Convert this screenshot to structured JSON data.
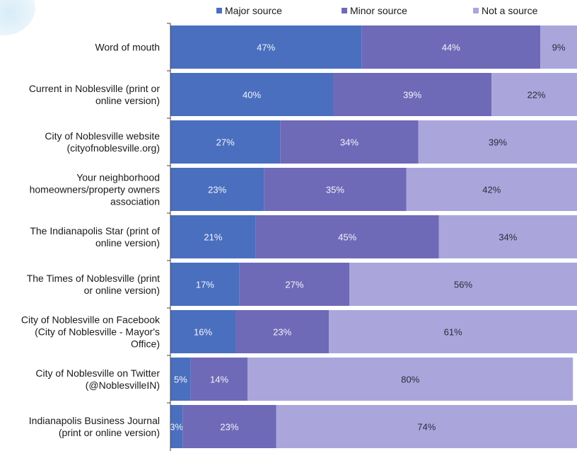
{
  "chart_data": {
    "type": "bar",
    "orientation": "horizontal",
    "stacked": true,
    "categories": [
      "Word of mouth",
      "Current in Noblesville (print or online version)",
      "City of Noblesville website (cityofnoblesville.org)",
      "Your neighborhood homeowners/property owners association",
      "The Indianapolis Star (print of online version)",
      "The Times of Noblesville (print or online version)",
      "City of Noblesville on Facebook (City of Noblesville - Mayor's Office)",
      "City of Noblesville on Twitter (@NoblesvilleIN)",
      "Indianapolis Business Journal (print or online version)"
    ],
    "category_lines": [
      [
        "Word of mouth"
      ],
      [
        "Current in Noblesville (print or",
        "online version)"
      ],
      [
        "City of Noblesville website",
        "(cityofnoblesville.org)"
      ],
      [
        "Your neighborhood",
        "homeowners/property owners",
        "association"
      ],
      [
        "The Indianapolis Star (print of",
        "online version)"
      ],
      [
        "The Times of Noblesville (print",
        "or online version)"
      ],
      [
        "City of Noblesville on Facebook",
        "(City of Noblesville - Mayor's",
        "Office)"
      ],
      [
        "City of Noblesville on Twitter",
        "(@NoblesvilleIN)"
      ],
      [
        "Indianapolis Business Journal",
        "(print or online version)"
      ]
    ],
    "series": [
      {
        "name": "Major source",
        "values": [
          47,
          40,
          27,
          23,
          21,
          17,
          16,
          5,
          3
        ],
        "color": "#4a6fbf"
      },
      {
        "name": "Minor source",
        "values": [
          44,
          39,
          34,
          35,
          45,
          27,
          23,
          14,
          23
        ],
        "color": "#6e6ab8"
      },
      {
        "name": "Not a source",
        "values": [
          9,
          22,
          39,
          42,
          34,
          56,
          61,
          80,
          74
        ],
        "color": "#aaa6dc"
      }
    ],
    "value_suffix": "%",
    "legend_position": "top",
    "xlim": [
      0,
      100
    ],
    "grid": false
  }
}
